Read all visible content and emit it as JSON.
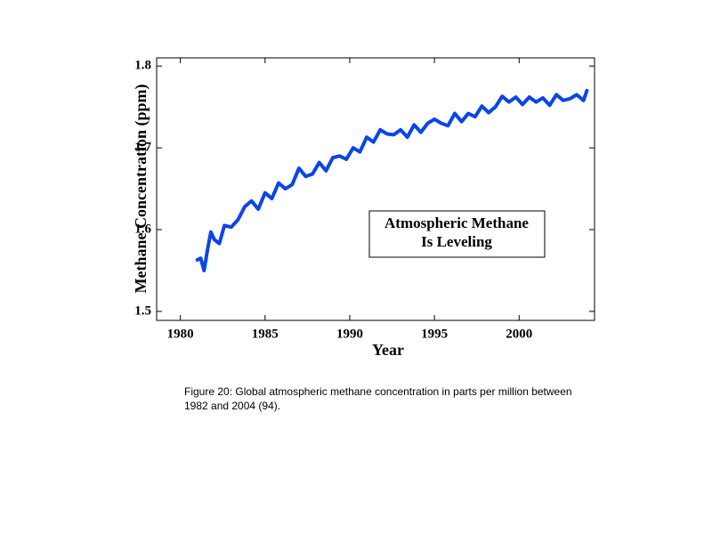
{
  "chart_data": {
    "type": "line",
    "xlabel": "Year",
    "ylabel": "Methane Concentration (ppm)",
    "annotation": [
      "Atmospheric Methane",
      "Is Leveling"
    ],
    "x": [
      1981.0,
      1981.2,
      1981.4,
      1981.6,
      1981.8,
      1982.0,
      1982.3,
      1982.6,
      1983.0,
      1983.4,
      1983.8,
      1984.2,
      1984.6,
      1985.0,
      1985.4,
      1985.8,
      1986.2,
      1986.6,
      1987.0,
      1987.4,
      1987.8,
      1988.2,
      1988.6,
      1989.0,
      1989.4,
      1989.8,
      1990.2,
      1990.6,
      1991.0,
      1991.4,
      1991.8,
      1992.2,
      1992.6,
      1993.0,
      1993.4,
      1993.8,
      1994.2,
      1994.6,
      1995.0,
      1995.4,
      1995.8,
      1996.2,
      1996.6,
      1997.0,
      1997.4,
      1997.8,
      1998.2,
      1998.6,
      1999.0,
      1999.4,
      1999.8,
      2000.2,
      2000.6,
      2001.0,
      2001.4,
      2001.8,
      2002.2,
      2002.6,
      2003.0,
      2003.4,
      2003.8,
      2004.0
    ],
    "series": [
      {
        "name": "Methane",
        "color": "#0a46e6",
        "values": [
          1.563,
          1.565,
          1.55,
          1.575,
          1.597,
          1.588,
          1.583,
          1.605,
          1.603,
          1.612,
          1.628,
          1.635,
          1.625,
          1.645,
          1.638,
          1.657,
          1.65,
          1.655,
          1.675,
          1.665,
          1.668,
          1.682,
          1.672,
          1.688,
          1.69,
          1.686,
          1.7,
          1.695,
          1.713,
          1.707,
          1.722,
          1.717,
          1.716,
          1.722,
          1.713,
          1.728,
          1.719,
          1.73,
          1.735,
          1.73,
          1.727,
          1.742,
          1.732,
          1.742,
          1.738,
          1.751,
          1.743,
          1.75,
          1.763,
          1.756,
          1.762,
          1.753,
          1.762,
          1.756,
          1.761,
          1.752,
          1.765,
          1.758,
          1.76,
          1.765,
          1.758,
          1.77
        ]
      }
    ],
    "xlim": [
      1978.6,
      2004.45
    ],
    "ylim": [
      1.489,
      1.81
    ],
    "xticks": [
      1980,
      1985,
      1990,
      1995,
      2000
    ],
    "yticks": [
      1.5,
      1.6,
      1.7,
      1.8
    ]
  },
  "caption": "Figure 20: Global atmospheric methane  concentration in parts per million between 1982 and 2004 (94)."
}
